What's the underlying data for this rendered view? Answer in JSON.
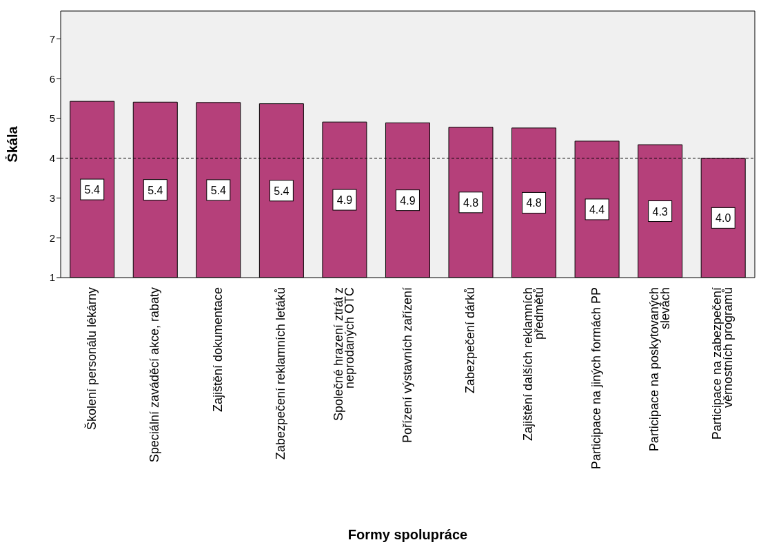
{
  "chart_data": {
    "type": "bar",
    "xlabel": "Formy spolupráce",
    "ylabel": "Škála",
    "categories": [
      "Školení personálu lékárny",
      "Speciální zaváděcí akce, rabaty",
      "Zajištění dokumentace",
      "Zabezpečení reklamních letáků",
      "Společné hrazení ztrát z neprodaných OTC",
      "Pořízení výstavních zařízení",
      "Zabezpečení dárků",
      "Zajištění dalších reklamních předmětů",
      "Participace na jiných formách PP",
      "Participace na poskytovaných slevách",
      "Participace na zabezpečení věrnostních programů"
    ],
    "values": [
      5.43,
      5.41,
      5.4,
      5.37,
      4.91,
      4.89,
      4.78,
      4.76,
      4.43,
      4.34,
      4.0
    ],
    "value_labels": [
      "5.4",
      "5.4",
      "5.4",
      "5.4",
      "4.9",
      "4.9",
      "4.8",
      "4.8",
      "4.4",
      "4.3",
      "4.0"
    ],
    "color": "#b5407a",
    "ylim": [
      1,
      7.7
    ],
    "yticks": [
      1,
      2,
      3,
      4,
      5,
      6,
      7
    ],
    "ref_lines": [
      {
        "axis": "y",
        "value": 4,
        "line_style": "dashed",
        "color": "#000000"
      }
    ],
    "grid": false,
    "legend": false
  }
}
